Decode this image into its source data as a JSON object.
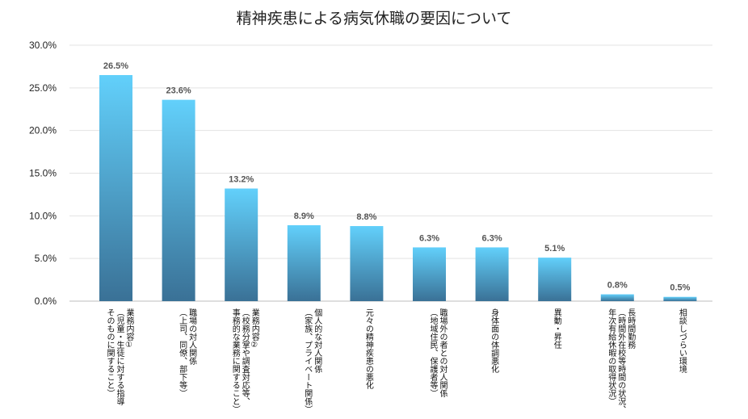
{
  "chart_data": {
    "type": "bar",
    "title": "精神疾患による病気休職の要因について",
    "xlabel": "",
    "ylabel": "",
    "ylim": [
      0,
      30
    ],
    "yticks": [
      "0.0%",
      "5.0%",
      "10.0%",
      "15.0%",
      "20.0%",
      "25.0%",
      "30.0%"
    ],
    "grid": true,
    "legend": "none",
    "bar_color_top": "#62d0fb",
    "bar_color_bottom": "#3a7196",
    "categories": [
      "業務内容①（児童・生徒に対する指導そのものに関すること）",
      "職場の対人関係（上司、同僚、部下等）",
      "業務内容②（校務分掌や調査対応等、事務的な業務に関すること）",
      "個人的な対人関係（家族、プライベート関係）",
      "元々の精神疾患の悪化",
      "職場外の者との対人関係（地域住民、保護者等）",
      "身体面の体調悪化",
      "異動・昇任",
      "長時間勤務（時間外在校等時間の状況、年次有給休暇の取得状況）",
      "相談しづらい環境"
    ],
    "category_lines": [
      [
        "業務内容①",
        "（児童・生徒に対する指導",
        "そのものに関すること）"
      ],
      [
        "職場の対人関係",
        "（上司、同僚、部下等）"
      ],
      [
        "業務内容②",
        "（校務分掌や調査対応等、",
        "事務的な業務に関すること）"
      ],
      [
        "個人的な対人関係",
        "（家族、プライベート関係）"
      ],
      [
        "元々の精神疾患の悪化"
      ],
      [
        "職場外の者との対人関係",
        "（地域住民、保護者等）"
      ],
      [
        "身体面の体調悪化"
      ],
      [
        "異動・昇任"
      ],
      [
        "長時間勤務",
        "（時間外在校等時間の状況、",
        "年次有給休暇の取得状況）"
      ],
      [
        "相談しづらい環境"
      ]
    ],
    "values": [
      26.5,
      23.6,
      13.2,
      8.9,
      8.8,
      6.3,
      6.3,
      5.1,
      0.8,
      0.5
    ],
    "data_labels": [
      "26.5%",
      "23.6%",
      "13.2%",
      "8.9%",
      "8.8%",
      "6.3%",
      "6.3%",
      "5.1%",
      "0.8%",
      "0.5%"
    ]
  }
}
